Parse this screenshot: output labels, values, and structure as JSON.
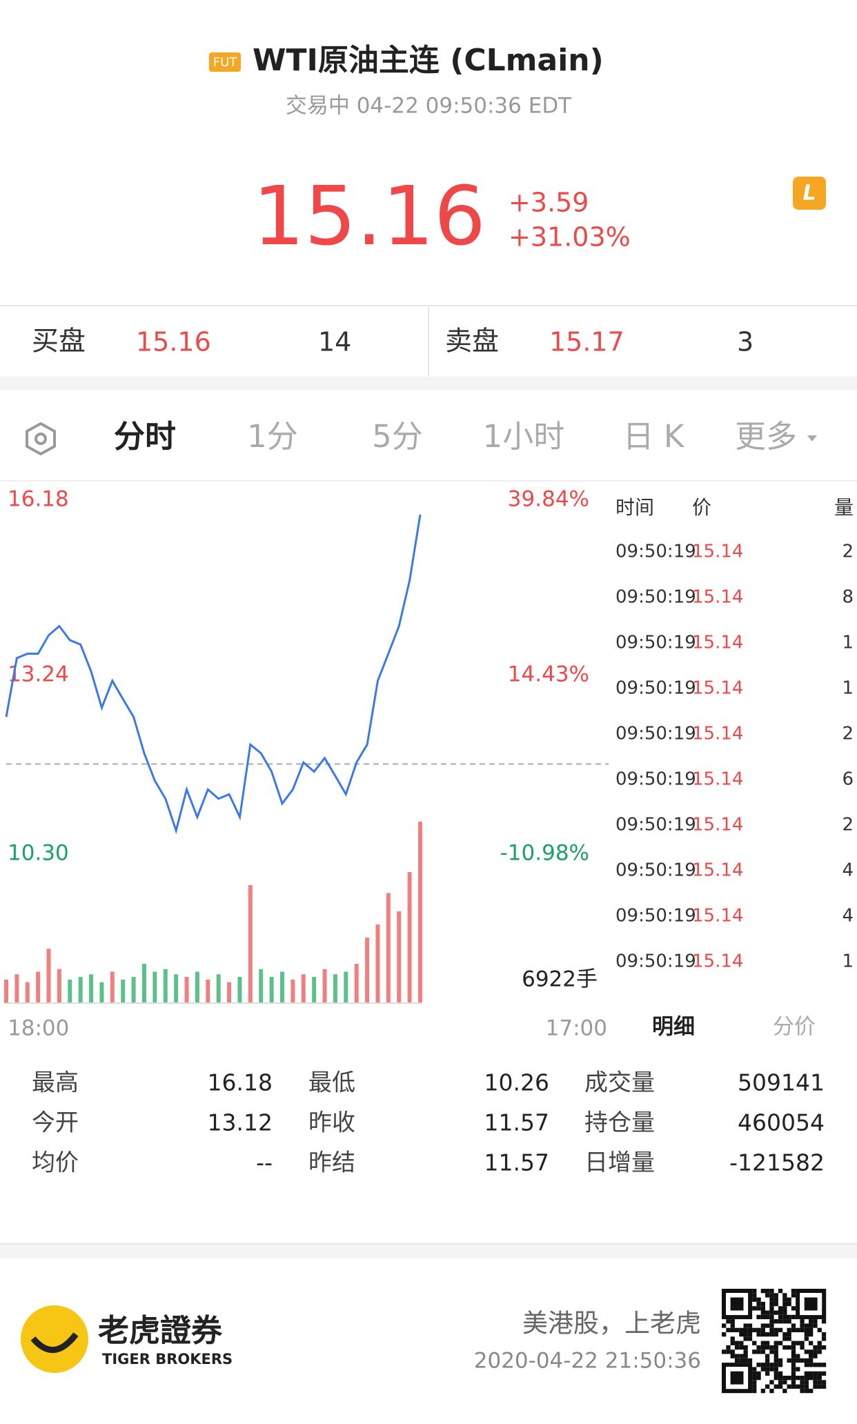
{
  "header": {
    "badge": "FUT",
    "title": "WTI原油主连 (CLmain)",
    "status": "交易中 04-22 09:50:36 EDT"
  },
  "quote": {
    "price": "15.16",
    "change": "+3.59",
    "change_pct": "+31.03%"
  },
  "bid_ask": {
    "bid_label": "买盘",
    "bid_price": "15.16",
    "bid_size": "14",
    "ask_label": "卖盘",
    "ask_price": "15.17",
    "ask_size": "3"
  },
  "tabs": [
    "分时",
    "1分",
    "5分",
    "1小时",
    "日 K",
    "更多"
  ],
  "chart_data": {
    "type": "line",
    "ylim": [
      10.3,
      16.18
    ],
    "yticks": [
      {
        "value": 16.18,
        "label": "16.18"
      },
      {
        "value": 13.24,
        "label": "13.24"
      },
      {
        "value": 10.3,
        "label": "10.30"
      }
    ],
    "y2lim": [
      -10.98,
      39.84
    ],
    "y2ticks": [
      {
        "value": 39.84,
        "label": "39.84%"
      },
      {
        "value": 14.43,
        "label": "14.43%"
      },
      {
        "value": -10.98,
        "label": "-10.98%"
      }
    ],
    "reference_line": 11.57,
    "x_labels": [
      "18:00",
      "17:00"
    ],
    "series": [
      {
        "color": "#3a78ee",
        "values": [
          12.44,
          13.53,
          13.61,
          13.61,
          13.95,
          14.12,
          13.86,
          13.78,
          13.28,
          12.61,
          13.11,
          12.77,
          12.44,
          11.77,
          11.26,
          10.93,
          10.34,
          11.1,
          10.59,
          11.1,
          10.93,
          11.01,
          10.59,
          11.93,
          11.77,
          11.43,
          10.84,
          11.1,
          11.6,
          11.43,
          11.68,
          11.35,
          11.01,
          11.6,
          11.93,
          13.11,
          13.61,
          14.12,
          14.96,
          16.18
        ]
      }
    ],
    "volume": {
      "ylim": [
        0,
        6922
      ],
      "max_label": "6922手",
      "values": [
        900,
        1100,
        800,
        1200,
        2077,
        1300,
        900,
        1000,
        1100,
        800,
        1200,
        900,
        1000,
        1500,
        1200,
        1300,
        1100,
        1000,
        1200,
        900,
        1100,
        800,
        1000,
        4500,
        1300,
        1000,
        1200,
        900,
        1100,
        1000,
        1300,
        1100,
        1200,
        1500,
        2500,
        3000,
        4200,
        3500,
        5000,
        6922
      ]
    }
  },
  "trades": {
    "headers": [
      "时间",
      "价",
      "量"
    ],
    "rows": [
      [
        "09:50:19",
        "15.14",
        "2"
      ],
      [
        "09:50:19",
        "15.14",
        "8"
      ],
      [
        "09:50:19",
        "15.14",
        "1"
      ],
      [
        "09:50:19",
        "15.14",
        "1"
      ],
      [
        "09:50:19",
        "15.14",
        "2"
      ],
      [
        "09:50:19",
        "15.14",
        "6"
      ],
      [
        "09:50:19",
        "15.14",
        "2"
      ],
      [
        "09:50:19",
        "15.14",
        "4"
      ],
      [
        "09:50:19",
        "15.14",
        "4"
      ],
      [
        "09:50:19",
        "15.14",
        "1"
      ]
    ]
  },
  "trade_tabs": [
    "明细",
    "分价"
  ],
  "stats": [
    [
      [
        "最高",
        "16.18"
      ],
      [
        "最低",
        "10.26"
      ],
      [
        "成交量",
        "509141"
      ]
    ],
    [
      [
        "今开",
        "13.12"
      ],
      [
        "昨收",
        "11.57"
      ],
      [
        "持仓量",
        "460054"
      ]
    ],
    [
      [
        "均价",
        "--"
      ],
      [
        "昨结",
        "11.57"
      ],
      [
        "日增量",
        "-121582"
      ]
    ]
  ],
  "footer": {
    "brand": "老虎證券",
    "brand_en": "TIGER BROKERS",
    "slogan": "美港股，上老虎",
    "timestamp": "2020-04-22 21:50:36"
  }
}
